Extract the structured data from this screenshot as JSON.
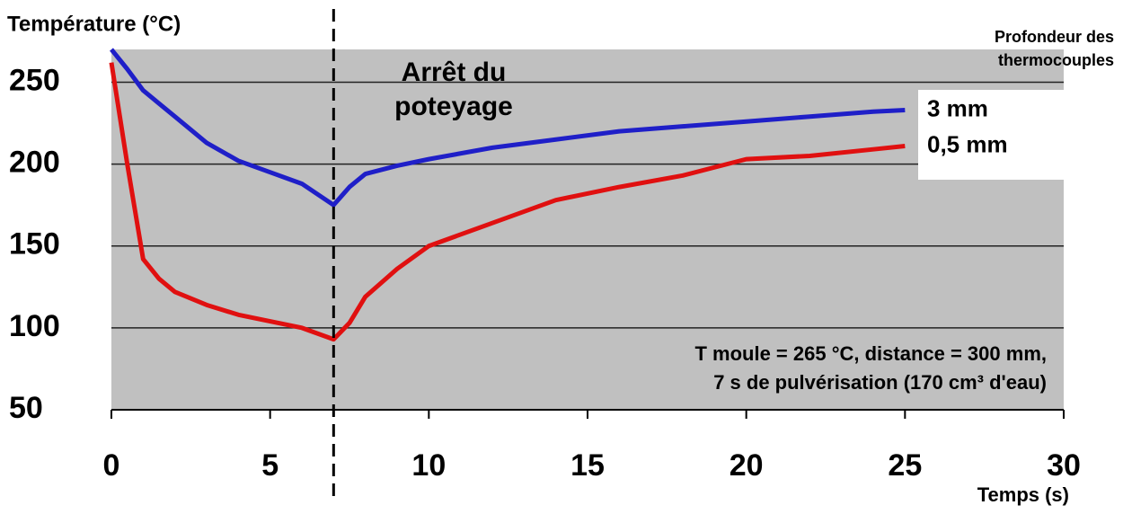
{
  "chart_data": {
    "type": "line",
    "y_label": "Température (°C)",
    "x_label": "Temps (s)",
    "x": [
      0,
      0.5,
      1,
      1.5,
      2,
      3,
      4,
      5,
      6,
      7,
      7.5,
      8,
      9,
      10,
      12,
      14,
      16,
      18,
      20,
      22,
      24,
      25
    ],
    "series": [
      {
        "name": "3 mm",
        "color": "#1f1fc8",
        "values": [
          270,
          258,
          245,
          237,
          229,
          213,
          202,
          195,
          188,
          175,
          186,
          194,
          199,
          203,
          210,
          215,
          220,
          223,
          226,
          229,
          232,
          233
        ]
      },
      {
        "name": "0,5 mm",
        "color": "#e01010",
        "values": [
          262,
          200,
          142,
          130,
          122,
          114,
          108,
          104,
          100,
          93,
          103,
          119,
          136,
          150,
          164,
          178,
          186,
          193,
          203,
          205,
          209,
          211
        ]
      }
    ],
    "vline": 7,
    "vline_label": [
      "Arrêt du",
      "poteyage"
    ],
    "legend_title": [
      "Profondeur des",
      "thermocouples"
    ],
    "annotation": [
      "T moule = 265 °C, distance = 300 mm,",
      "7 s de pulvérisation (170 cm³ d'eau)"
    ],
    "xlim": [
      0,
      30
    ],
    "xticks": [
      0,
      5,
      10,
      15,
      20,
      25,
      30
    ],
    "ylim": [
      50,
      270
    ],
    "yticks": [
      50,
      100,
      150,
      200,
      250
    ],
    "grid": true
  }
}
